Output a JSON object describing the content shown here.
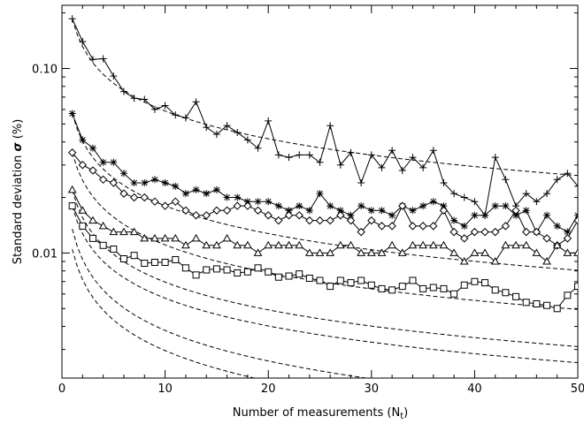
{
  "chart_data": {
    "type": "line",
    "xlabel": {
      "text": "Number of measurements (N",
      "sub": "t",
      "suffix": ")"
    },
    "ylabel": {
      "text": "Standard deviation ",
      "symbol": "σ",
      "suffix": " (%)"
    },
    "xlim": [
      0,
      50
    ],
    "ylim": [
      0.0021,
      0.22
    ],
    "yscale": "log",
    "x_ticks": [
      0,
      10,
      20,
      30,
      40,
      50
    ],
    "x_tick_labels": [
      "0",
      "10",
      "20",
      "30",
      "40",
      "50"
    ],
    "y_ticks": [
      0.01,
      0.1
    ],
    "y_tick_labels": [
      "0.01",
      "0.10"
    ],
    "grid": false,
    "legend": "none",
    "x": [
      1,
      2,
      3,
      4,
      5,
      6,
      7,
      8,
      9,
      10,
      11,
      12,
      13,
      14,
      15,
      16,
      17,
      18,
      19,
      20,
      21,
      22,
      23,
      24,
      25,
      26,
      27,
      28,
      29,
      30,
      31,
      32,
      33,
      34,
      35,
      36,
      37,
      38,
      39,
      40,
      41,
      42,
      43,
      44,
      45,
      46,
      47,
      48,
      49,
      50
    ],
    "series": [
      {
        "marker": "plus",
        "values": [
          0.186,
          0.14,
          0.112,
          0.113,
          0.091,
          0.075,
          0.069,
          0.068,
          0.06,
          0.063,
          0.056,
          0.054,
          0.066,
          0.048,
          0.044,
          0.049,
          0.045,
          0.041,
          0.037,
          0.052,
          0.034,
          0.033,
          0.034,
          0.034,
          0.031,
          0.049,
          0.03,
          0.035,
          0.024,
          0.034,
          0.029,
          0.036,
          0.028,
          0.033,
          0.029,
          0.036,
          0.024,
          0.021,
          0.02,
          0.019,
          0.016,
          0.033,
          0.025,
          0.018,
          0.021,
          0.019,
          0.021,
          0.025,
          0.027,
          0.023
        ],
        "fit": {
          "a": 0.186,
          "p": 0.5
        }
      },
      {
        "marker": "asterisk",
        "values": [
          0.057,
          0.041,
          0.037,
          0.031,
          0.031,
          0.027,
          0.024,
          0.024,
          0.025,
          0.024,
          0.023,
          0.021,
          0.022,
          0.021,
          0.022,
          0.02,
          0.02,
          0.019,
          0.019,
          0.019,
          0.018,
          0.017,
          0.018,
          0.017,
          0.021,
          0.018,
          0.017,
          0.016,
          0.018,
          0.017,
          0.017,
          0.016,
          0.018,
          0.017,
          0.018,
          0.019,
          0.018,
          0.015,
          0.014,
          0.016,
          0.016,
          0.018,
          0.018,
          0.016,
          0.017,
          0.013,
          0.016,
          0.014,
          0.013,
          0.016
        ],
        "fit": {
          "a": 0.057,
          "p": 0.5
        }
      },
      {
        "marker": "diamond",
        "values": [
          0.035,
          0.03,
          0.028,
          0.025,
          0.024,
          0.021,
          0.02,
          0.02,
          0.019,
          0.018,
          0.019,
          0.017,
          0.016,
          0.016,
          0.017,
          0.017,
          0.018,
          0.018,
          0.017,
          0.016,
          0.015,
          0.016,
          0.016,
          0.015,
          0.015,
          0.015,
          0.016,
          0.015,
          0.013,
          0.015,
          0.014,
          0.014,
          0.018,
          0.014,
          0.014,
          0.014,
          0.017,
          0.013,
          0.012,
          0.013,
          0.013,
          0.013,
          0.014,
          0.017,
          0.013,
          0.013,
          0.012,
          0.011,
          0.012,
          0.015
        ],
        "fit": {
          "a": 0.035,
          "p": 0.5
        }
      },
      {
        "marker": "triangle",
        "values": [
          0.022,
          0.017,
          0.015,
          0.014,
          0.013,
          0.013,
          0.013,
          0.012,
          0.012,
          0.012,
          0.012,
          0.011,
          0.012,
          0.011,
          0.011,
          0.012,
          0.011,
          0.011,
          0.01,
          0.011,
          0.011,
          0.011,
          0.011,
          0.01,
          0.01,
          0.01,
          0.011,
          0.011,
          0.01,
          0.01,
          0.01,
          0.011,
          0.01,
          0.011,
          0.011,
          0.011,
          0.011,
          0.01,
          0.009,
          0.01,
          0.01,
          0.009,
          0.011,
          0.011,
          0.011,
          0.01,
          0.009,
          0.011,
          0.01,
          0.01
        ],
        "fit": {
          "a": 0.022,
          "p": 0.5
        }
      },
      {
        "marker": "square",
        "values": [
          0.018,
          0.014,
          0.012,
          0.011,
          0.0105,
          0.0093,
          0.0097,
          0.0088,
          0.0089,
          0.0089,
          0.0092,
          0.0083,
          0.0076,
          0.0081,
          0.0082,
          0.0081,
          0.0078,
          0.0079,
          0.0083,
          0.0079,
          0.0074,
          0.0075,
          0.0077,
          0.0073,
          0.0071,
          0.0066,
          0.0071,
          0.0069,
          0.0071,
          0.0067,
          0.0064,
          0.0063,
          0.0066,
          0.0071,
          0.0064,
          0.0065,
          0.0064,
          0.006,
          0.0067,
          0.007,
          0.0069,
          0.0063,
          0.0061,
          0.0058,
          0.0054,
          0.0053,
          0.0052,
          0.005,
          0.0059,
          0.0066
        ],
        "fit": {
          "a": 0.018,
          "p": 0.5
        }
      }
    ],
    "extra_reference_curves": [
      {
        "a": 0.0135,
        "p": 0.55
      },
      {
        "a": 0.0105,
        "p": 0.55
      }
    ]
  }
}
